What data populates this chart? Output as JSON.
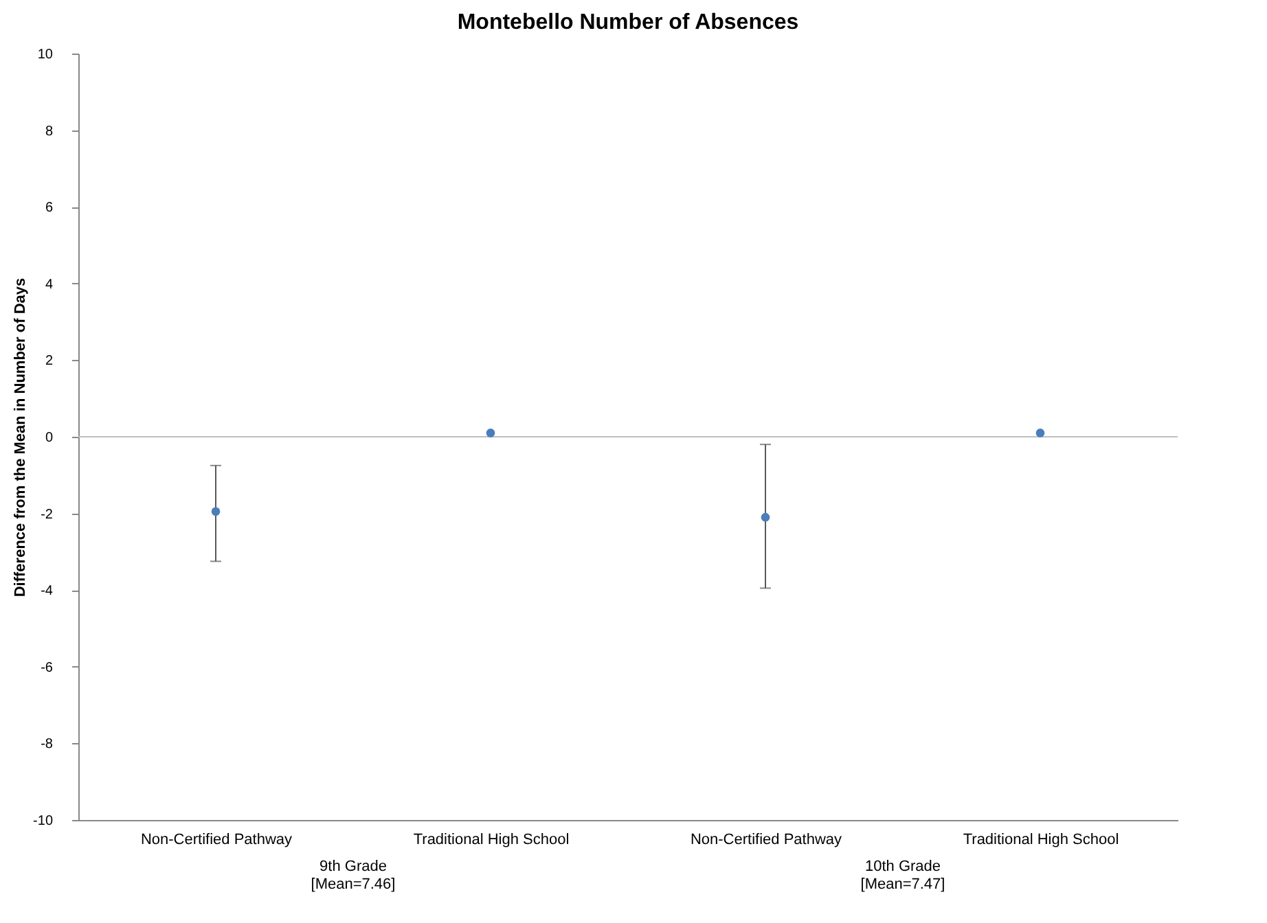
{
  "chart_data": {
    "type": "scatter",
    "title": "Montebello Number of Absences",
    "ylabel": "Difference from the Mean in Number of Days",
    "categories": [
      "Non-Certified Pathway",
      "Traditional High School",
      "Non-Certified Pathway",
      "Traditional High School"
    ],
    "series": [
      {
        "color": "#4a7ebb",
        "values": [
          -1.95,
          0.1,
          -2.1,
          0.1
        ],
        "errors": [
          [
            -3.25,
            -0.75
          ],
          null,
          [
            -3.95,
            -0.2
          ],
          null
        ]
      }
    ],
    "annotations": [
      "9th Grade\n[Mean=7.46]",
      "10th Grade\n[Mean=7.47]"
    ],
    "ref_lines": [
      {
        "axis": "y",
        "value": 0,
        "color": "#bfbfbf"
      }
    ],
    "ylim": [
      -10,
      10
    ],
    "yticks": [
      -10,
      -8,
      -6,
      -4,
      -2,
      0,
      2,
      4,
      6,
      8,
      10
    ],
    "grid": false,
    "marker": "circle"
  }
}
